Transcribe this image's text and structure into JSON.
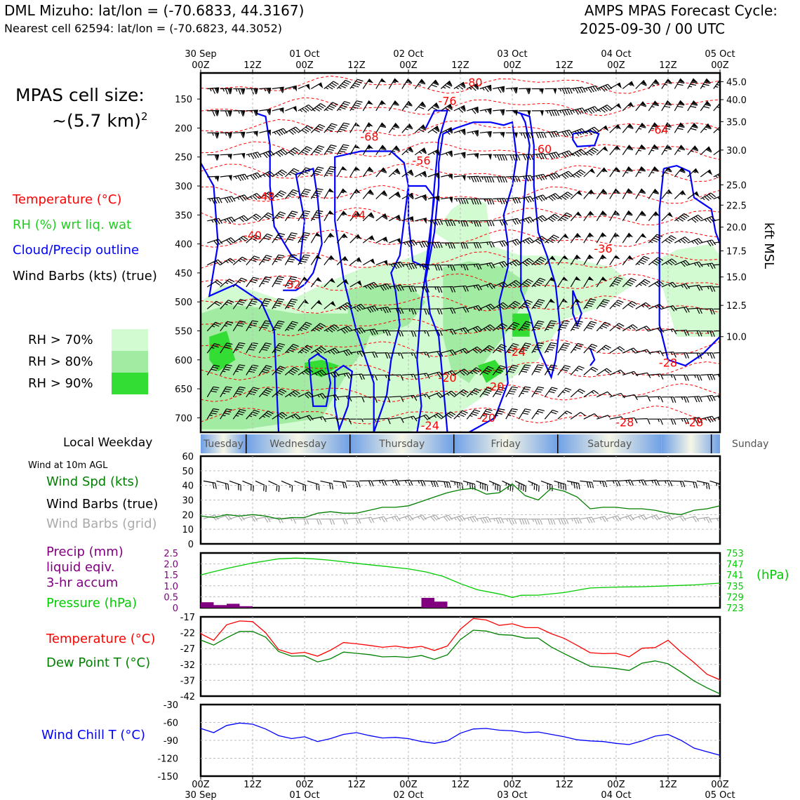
{
  "header": {
    "station_line": "DML Mizuho: lat/lon = (-70.6833, 44.3167)",
    "cell_line": "Nearest cell 62594: lat/lon = (-70.6823, 44.3052)",
    "cycle_line1": "AMPS MPAS Forecast Cycle:",
    "cycle_line2": "2025-09-30 / 00 UTC"
  },
  "cell_size": {
    "line1": "MPAS cell size:",
    "line2": "~(5.7 km)",
    "exponent": "2"
  },
  "legend": {
    "temperature": "Temperature (°C)",
    "rh": "RH (%) wrt liq. wat",
    "cloud": "Cloud/Precip outline",
    "wind": "Wind Barbs (kts) (true)",
    "rh_levels": [
      {
        "label": "RH > 70%",
        "color": "#d2fbd2"
      },
      {
        "label": "RH > 80%",
        "color": "#a2eba2"
      },
      {
        "label": "RH > 90%",
        "color": "#33dd33"
      }
    ]
  },
  "colors": {
    "temperature": "#ff0000",
    "rh": "#22cc22",
    "cloud": "#0000ff",
    "wind": "#000000",
    "precip": "#800080",
    "pressure": "#00cc00",
    "dewpoint": "#008000",
    "windchill": "#0000ff",
    "grid_barbs": "#aaaaaa"
  },
  "time_axis": {
    "top_ticks": [
      {
        "date": "30 Sep",
        "hour": "00Z"
      },
      {
        "date": "",
        "hour": "12Z"
      },
      {
        "date": "01 Oct",
        "hour": "00Z"
      },
      {
        "date": "",
        "hour": "12Z"
      },
      {
        "date": "02 Oct",
        "hour": "00Z"
      },
      {
        "date": "",
        "hour": "12Z"
      },
      {
        "date": "03 Oct",
        "hour": "00Z"
      },
      {
        "date": "",
        "hour": "12Z"
      },
      {
        "date": "04 Oct",
        "hour": "00Z"
      },
      {
        "date": "",
        "hour": "12Z"
      },
      {
        "date": "05 Oct",
        "hour": "00Z"
      }
    ],
    "bottom_ticks": [
      {
        "hour": "00Z",
        "date": "30 Sep"
      },
      {
        "hour": "12Z",
        "date": ""
      },
      {
        "hour": "00Z",
        "date": "01 Oct"
      },
      {
        "hour": "12Z",
        "date": ""
      },
      {
        "hour": "00Z",
        "date": "02 Oct"
      },
      {
        "hour": "12Z",
        "date": ""
      },
      {
        "hour": "00Z",
        "date": "03 Oct"
      },
      {
        "hour": "12Z",
        "date": ""
      },
      {
        "hour": "00Z",
        "date": "04 Oct"
      },
      {
        "hour": "12Z",
        "date": ""
      },
      {
        "hour": "00Z",
        "date": "05 Oct"
      }
    ]
  },
  "weekday_bar": {
    "label": "Local Weekday",
    "days": [
      "Tuesday",
      "Wednesday",
      "Thursday",
      "Friday",
      "Saturday",
      "Sunday"
    ]
  },
  "chart_data": [
    {
      "type": "heatmap",
      "name": "cross_section",
      "y_left_ticks": [
        150,
        200,
        250,
        300,
        350,
        400,
        450,
        500,
        550,
        600,
        650,
        700
      ],
      "y_right_ticks": [
        "45.0",
        "40.0",
        "35.0",
        "30.0",
        "25.0",
        "22.5",
        "20.0",
        "17.5",
        "15.0",
        "12.5",
        "10.0"
      ],
      "y_right_label": "kft MSL",
      "ylim": [
        725,
        105
      ],
      "xlim_hours": [
        0,
        120
      ],
      "temperature_contour_labels": [
        {
          "text": "-80",
          "hour": 63,
          "p": 128
        },
        {
          "text": "-76",
          "hour": 57,
          "p": 160
        },
        {
          "text": "-68",
          "hour": 39,
          "p": 222
        },
        {
          "text": "-60",
          "hour": 79,
          "p": 243
        },
        {
          "text": "-56",
          "hour": 51,
          "p": 263
        },
        {
          "text": "-48",
          "hour": 15,
          "p": 325
        },
        {
          "text": "-44",
          "hour": 36,
          "p": 357
        },
        {
          "text": "-40",
          "hour": 12,
          "p": 392
        },
        {
          "text": "-36",
          "hour": 93,
          "p": 415
        },
        {
          "text": "-32",
          "hour": 21,
          "p": 477
        },
        {
          "text": "-24",
          "hour": 73,
          "p": 593
        },
        {
          "text": "-20",
          "hour": 57,
          "p": 638
        },
        {
          "text": "-20",
          "hour": 68,
          "p": 653
        },
        {
          "text": "-20",
          "hour": 66,
          "p": 707
        },
        {
          "text": "-24",
          "hour": 53,
          "p": 720
        },
        {
          "text": "-28",
          "hour": 108,
          "p": 612
        },
        {
          "text": "-28",
          "hour": 98,
          "p": 715
        },
        {
          "text": "-28",
          "hour": 114,
          "p": 715
        },
        {
          "text": "-64",
          "hour": 106,
          "p": 210
        }
      ]
    },
    {
      "type": "line",
      "name": "wind_speed",
      "title": "Wind at 10m AGL",
      "series": [
        {
          "name": "Wind Spd (kts)",
          "color": "#008000",
          "x": [
            0,
            3,
            6,
            9,
            12,
            15,
            18,
            21,
            24,
            27,
            30,
            33,
            36,
            39,
            42,
            45,
            48,
            51,
            54,
            57,
            60,
            63,
            66,
            69,
            72,
            75,
            78,
            81,
            84,
            87,
            90,
            93,
            96,
            99,
            102,
            105,
            108,
            111,
            114,
            117,
            120
          ],
          "values": [
            19,
            18,
            20,
            19,
            20,
            19,
            17,
            18,
            18,
            21,
            22,
            21,
            21,
            23,
            25,
            25,
            26,
            29,
            32,
            35,
            37,
            38,
            34,
            35,
            41,
            33,
            30,
            38,
            36,
            32,
            24,
            25,
            25,
            24,
            24,
            23,
            21,
            20,
            23,
            24,
            26
          ]
        }
      ],
      "legend_labels": [
        "Wind Spd (kts)",
        "Wind Barbs (true)",
        "Wind Barbs (grid)"
      ],
      "y_ticks": [
        0,
        10,
        20,
        30,
        40,
        50,
        60
      ],
      "ylim": [
        0,
        60
      ]
    },
    {
      "type": "bar",
      "name": "precip_pressure",
      "precip_label": "Precip (mm)",
      "precip_label2": "liquid eqiv.",
      "precip_label3": "3-hr accum",
      "pressure_label": "Pressure (hPa)",
      "precip_hours": [
        3,
        6,
        9,
        12,
        54,
        57
      ],
      "precip_values": [
        0.25,
        0.12,
        0.18,
        0.07,
        0.45,
        0.28
      ],
      "precip_ylim": [
        0,
        2.5
      ],
      "precip_ticks": [
        "0",
        "0.5",
        "1.0",
        "1.5",
        "2.0",
        "2.5"
      ],
      "pressure_x": [
        0,
        6,
        12,
        18,
        22,
        26,
        30,
        36,
        42,
        48,
        52,
        56,
        60,
        64,
        68,
        70,
        72,
        74,
        78,
        84,
        90,
        96,
        102,
        108,
        114,
        120
      ],
      "pressure_values": [
        741,
        744.5,
        747.5,
        749.8,
        750.2,
        749.8,
        749,
        747.3,
        745.8,
        744.3,
        742.6,
        740.2,
        736.2,
        732.8,
        731,
        730,
        728.6,
        729.8,
        729.9,
        731.3,
        733.8,
        734.3,
        734.5,
        735,
        735.5,
        736.5
      ],
      "pressure_ylim": [
        723,
        753
      ],
      "pressure_ticks": [
        "753",
        "747",
        "741",
        "735",
        "729",
        "723"
      ],
      "pressure_unit": "(hPa)"
    },
    {
      "type": "line",
      "name": "temperature_dewpoint",
      "series": [
        {
          "name": "Temperature (°C)",
          "color": "#ff0000",
          "x": [
            0,
            3,
            6,
            9,
            12,
            15,
            18,
            21,
            24,
            27,
            30,
            33,
            36,
            39,
            42,
            45,
            48,
            51,
            54,
            57,
            60,
            63,
            66,
            69,
            72,
            75,
            78,
            81,
            84,
            87,
            90,
            93,
            96,
            99,
            102,
            105,
            108,
            111,
            114,
            117,
            120
          ],
          "values": [
            -22.3,
            -24.4,
            -19.5,
            -18.3,
            -18.5,
            -22,
            -27.3,
            -28.6,
            -28.2,
            -29.4,
            -27.5,
            -25.1,
            -25.5,
            -26,
            -26.6,
            -26.2,
            -26.8,
            -26.3,
            -27.6,
            -26.2,
            -20.9,
            -17.5,
            -18,
            -19.7,
            -19.2,
            -20.4,
            -20.4,
            -22.3,
            -23.8,
            -26,
            -28.3,
            -28.6,
            -28.5,
            -29.6,
            -26.9,
            -26.7,
            -24.4,
            -28.1,
            -31.4,
            -35.1,
            -36.9
          ]
        },
        {
          "name": "Dew Point T (°C)",
          "color": "#008000",
          "x": [
            0,
            3,
            6,
            9,
            12,
            15,
            18,
            21,
            24,
            27,
            30,
            33,
            36,
            39,
            42,
            45,
            48,
            51,
            54,
            57,
            60,
            63,
            66,
            69,
            72,
            75,
            78,
            81,
            84,
            87,
            90,
            93,
            96,
            99,
            102,
            105,
            108,
            111,
            114,
            117,
            120
          ],
          "values": [
            -24.3,
            -25.9,
            -23.6,
            -21.6,
            -21.6,
            -23.4,
            -27.9,
            -29.4,
            -29.3,
            -31.2,
            -30.2,
            -28.1,
            -28.5,
            -28.9,
            -29.6,
            -29.5,
            -29.8,
            -29.2,
            -30.4,
            -29,
            -24.2,
            -21.2,
            -21.5,
            -22.6,
            -22.8,
            -23.7,
            -23.7,
            -26.5,
            -28.6,
            -30.6,
            -32.6,
            -32.9,
            -33.3,
            -33.9,
            -31.6,
            -30.9,
            -31.8,
            -34.4,
            -37.2,
            -39.4,
            -41.3
          ]
        }
      ],
      "y_ticks": [
        -17,
        -22,
        -27,
        -32,
        -37,
        -42
      ],
      "ylim": [
        -42,
        -17
      ]
    },
    {
      "type": "line",
      "name": "wind_chill",
      "series": [
        {
          "name": "Wind Chill T (°C)",
          "color": "#0000ff",
          "x": [
            0,
            3,
            6,
            9,
            12,
            15,
            18,
            21,
            24,
            27,
            30,
            33,
            36,
            39,
            42,
            45,
            48,
            51,
            54,
            57,
            60,
            63,
            66,
            69,
            72,
            75,
            78,
            81,
            84,
            87,
            90,
            93,
            96,
            99,
            102,
            105,
            108,
            111,
            114,
            117,
            120
          ],
          "values": [
            -70,
            -77,
            -65,
            -61,
            -63,
            -71,
            -82,
            -87,
            -84,
            -92,
            -87,
            -80,
            -77,
            -82,
            -86,
            -85,
            -87,
            -92,
            -95,
            -91,
            -78,
            -71,
            -70,
            -73,
            -74,
            -77,
            -76,
            -80,
            -84,
            -89,
            -91,
            -92,
            -95,
            -97,
            -91,
            -83,
            -80,
            -90,
            -103,
            -109,
            -115
          ]
        }
      ],
      "y_ticks": [
        -30,
        -60,
        -90,
        -120,
        -150
      ],
      "ylim": [
        -150,
        -30
      ]
    }
  ]
}
